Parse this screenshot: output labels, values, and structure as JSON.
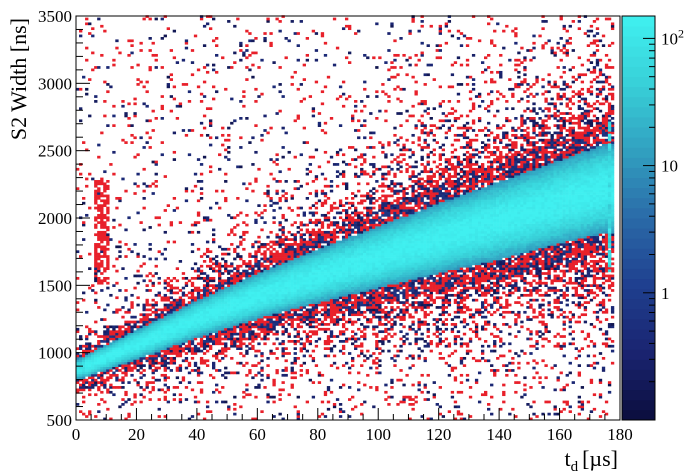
{
  "chart_data": {
    "type": "heatmap",
    "title": "",
    "xlabel": "t",
    "xlabel_sub": "d",
    "xlabel_unit": "[µs]",
    "ylabel": "S2 Width [ns]",
    "xlim": [
      0,
      180
    ],
    "ylim": [
      500,
      3500
    ],
    "x_ticks": [
      "0",
      "20",
      "40",
      "60",
      "80",
      "100",
      "120",
      "140",
      "160",
      "180"
    ],
    "y_ticks": [
      "500",
      "1000",
      "1500",
      "2000",
      "2500",
      "3000",
      "3500"
    ],
    "z_scale": "log",
    "zlim": [
      0.1,
      150
    ],
    "z_ticks": [
      {
        "value": 1,
        "label": "1"
      },
      {
        "value": 10,
        "label": "10"
      },
      {
        "value": 100,
        "label": "10",
        "sup": "2"
      }
    ],
    "color_scale": [
      "#0b0d3d",
      "#1a2470",
      "#1f3f8f",
      "#2a6aa8",
      "#31a0c0",
      "#38d0d8",
      "#40f0f0"
    ],
    "outlier_color": "#e8202a",
    "band": {
      "description_points": [
        {
          "x": 1,
          "center": 880,
          "half_width": 80
        },
        {
          "x": 20,
          "center": 1060,
          "half_width": 110
        },
        {
          "x": 40,
          "center": 1250,
          "half_width": 140
        },
        {
          "x": 60,
          "center": 1420,
          "half_width": 170
        },
        {
          "x": 80,
          "center": 1570,
          "half_width": 200
        },
        {
          "x": 100,
          "center": 1710,
          "half_width": 230
        },
        {
          "x": 120,
          "center": 1850,
          "half_width": 260
        },
        {
          "x": 140,
          "center": 1980,
          "half_width": 290
        },
        {
          "x": 160,
          "center": 2120,
          "half_width": 310
        },
        {
          "x": 175,
          "center": 2220,
          "half_width": 330
        }
      ],
      "peak_counts": 150
    }
  }
}
